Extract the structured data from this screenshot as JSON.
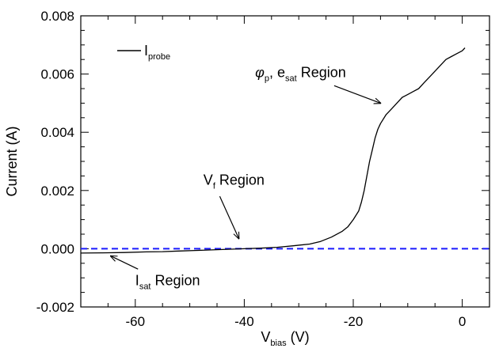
{
  "chart_data": {
    "type": "line",
    "title": "",
    "xlabel": {
      "main": "V",
      "sub": "bias",
      "tail": " (V)"
    },
    "ylabel": "Current (A)",
    "xlim": [
      -70,
      5
    ],
    "ylim": [
      -0.002,
      0.008
    ],
    "x_ticks": [
      -60,
      -40,
      -20,
      0
    ],
    "x_tick_labels": [
      "-60",
      "-40",
      "-20",
      "0"
    ],
    "y_ticks": [
      -0.002,
      0.0,
      0.002,
      0.004,
      0.006,
      0.008
    ],
    "y_tick_labels": [
      "-0.002",
      "0.000",
      "0.002",
      "0.004",
      "0.006",
      "0.008"
    ],
    "legend": {
      "position": "top-left",
      "main": "I",
      "sub": "probe"
    },
    "reference_line": {
      "y": 0.0,
      "style": "dashed",
      "color": "#1a1aff"
    },
    "series": [
      {
        "name": "Iprobe",
        "color": "#000000",
        "x": [
          -70,
          -66,
          -62,
          -58,
          -55,
          -52,
          -49,
          -46,
          -43,
          -40,
          -37,
          -34,
          -31,
          -28,
          -26,
          -24,
          -22,
          -21,
          -20,
          -19,
          -18.5,
          -18,
          -17.5,
          -17,
          -16.5,
          -16,
          -15.5,
          -15,
          -14,
          -13,
          -12,
          -11,
          -10,
          -9,
          -8,
          -7,
          -6,
          -5,
          -4,
          -3,
          -2,
          -1,
          0,
          0.5
        ],
        "y": [
          -0.00015,
          -0.00014,
          -0.00013,
          -0.00011,
          -0.0001,
          -8e-05,
          -6e-05,
          -4e-05,
          -2e-05,
          0.0,
          2e-05,
          5e-05,
          0.0001,
          0.00016,
          0.00025,
          0.0004,
          0.0006,
          0.00075,
          0.001,
          0.0013,
          0.0016,
          0.002,
          0.0025,
          0.003,
          0.0034,
          0.0038,
          0.0041,
          0.0043,
          0.0046,
          0.0048,
          0.005,
          0.0052,
          0.0053,
          0.0054,
          0.0055,
          0.0057,
          0.0059,
          0.0061,
          0.0063,
          0.0065,
          0.0066,
          0.0067,
          0.0068,
          0.0069
        ]
      }
    ],
    "annotations": [
      {
        "main": "V",
        "sub": "f",
        "tail": " Region",
        "text_at": [
          -47.5,
          0.0022
        ],
        "arrow_to": [
          -41,
          0.00035
        ]
      },
      {
        "main": "I",
        "sub": "sat",
        "tail": " Region",
        "text_at": [
          -60,
          -0.00125
        ],
        "arrow_to": [
          -64.5,
          -0.00025
        ]
      },
      {
        "phi": "φ",
        "phi_sub": "p",
        "mid": ", e",
        "mid_sub": "sat",
        "tail": " Region",
        "text_at": [
          -38,
          0.0059
        ],
        "arrow_to": [
          -15,
          0.005
        ]
      }
    ]
  }
}
